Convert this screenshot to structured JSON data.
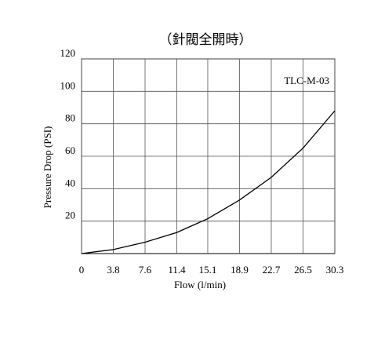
{
  "chart_data": {
    "type": "line",
    "title": "（針閥全開時）",
    "x_label": "Flow (l/min)",
    "y_label": "Pressure Drop (PSI)",
    "annotation": "TLC-M-03",
    "x": [
      0,
      3.8,
      7.6,
      11.4,
      15.1,
      18.9,
      22.7,
      26.5,
      30.3
    ],
    "values": [
      0,
      2.5,
      7,
      13,
      21.5,
      33,
      47,
      65,
      88
    ],
    "color": "#000000",
    "xlim": [
      0,
      30.3
    ],
    "xticks": [
      0,
      3.8,
      7.6,
      11.4,
      15.1,
      18.9,
      22.7,
      26.5,
      30.3
    ],
    "ylim": [
      0,
      120
    ],
    "yticks": [
      20,
      40,
      60,
      80,
      100,
      120
    ],
    "grid": true
  }
}
